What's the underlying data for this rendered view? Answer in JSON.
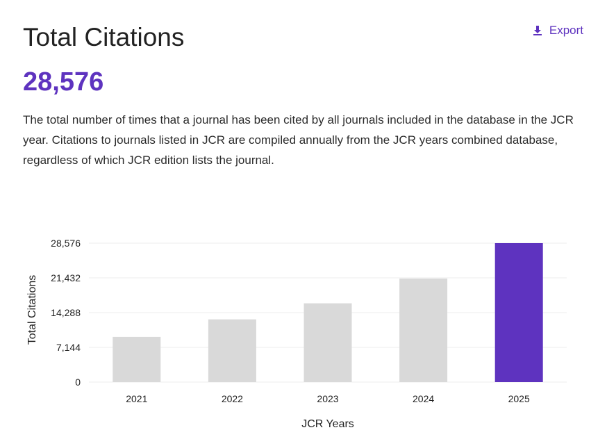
{
  "header": {
    "title": "Total Citations",
    "export_label": "Export",
    "export_icon": "download-icon"
  },
  "summary": {
    "value": "28,576",
    "description": "The total number of times that a journal has been cited by all journals included in the database in the JCR year. Citations to journals listed in JCR are compiled annually from the JCR years combined database, regardless of which JCR edition lists the journal."
  },
  "colors": {
    "accent": "#5e33bf",
    "bar_default": "#d9d9d9",
    "bar_highlight": "#5e33bf"
  },
  "chart_data": {
    "type": "bar",
    "categories": [
      "2021",
      "2022",
      "2023",
      "2024",
      "2025"
    ],
    "values": [
      9300,
      12900,
      16200,
      21300,
      28576
    ],
    "highlight_index": 4,
    "xlabel": "JCR Years",
    "ylabel": "Total Citations",
    "ylim": [
      0,
      28576
    ],
    "yticks": [
      0,
      7144,
      14288,
      21432,
      28576
    ],
    "ytick_labels": [
      "0",
      "7,144",
      "14,288",
      "21,432",
      "28,576"
    ],
    "grid": true
  }
}
